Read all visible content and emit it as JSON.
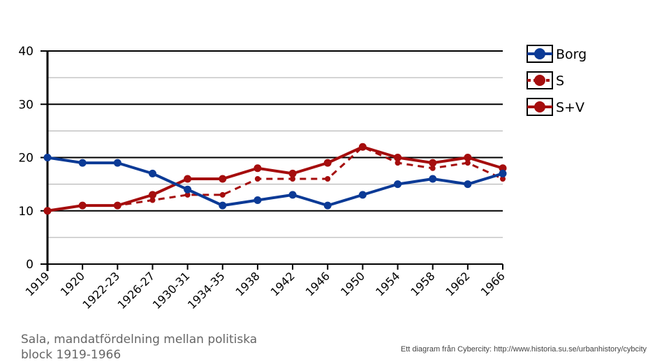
{
  "chart_data": {
    "type": "line",
    "title": "Sala, mandatfördelning mellan politiska block 1919-1966",
    "xlabel": "",
    "ylabel": "",
    "ylim": [
      0,
      40
    ],
    "yticks": [
      "0",
      "10",
      "20",
      "30",
      "40"
    ],
    "grid": true,
    "legend_placement": "right",
    "categories": [
      "1919",
      "1920",
      "1922-23",
      "1926-27",
      "1930-31",
      "1934-35",
      "1938",
      "1942",
      "1946",
      "1950",
      "1954",
      "1958",
      "1962",
      "1966"
    ],
    "series": [
      {
        "name": "Borg",
        "color": "#0b3a96",
        "dashed": false,
        "values": [
          20,
          19,
          19,
          17,
          14,
          11,
          12,
          13,
          11,
          13,
          15,
          16,
          15,
          17
        ]
      },
      {
        "name": "S",
        "color": "#a50d0d",
        "dashed": true,
        "values": [
          10,
          11,
          11,
          12,
          13,
          13,
          16,
          16,
          16,
          22,
          19,
          18,
          19,
          16
        ]
      },
      {
        "name": "S+V",
        "color": "#a50d0d",
        "dashed": false,
        "values": [
          10,
          11,
          11,
          13,
          16,
          16,
          18,
          17,
          19,
          22,
          20,
          19,
          20,
          18
        ]
      }
    ]
  },
  "caption": "Sala, mandatfördelning mellan politiska block 1919-1966",
  "credit": "Ett diagram från Cybercity: http://www.historia.su.se/urbanhistory/cybcity"
}
